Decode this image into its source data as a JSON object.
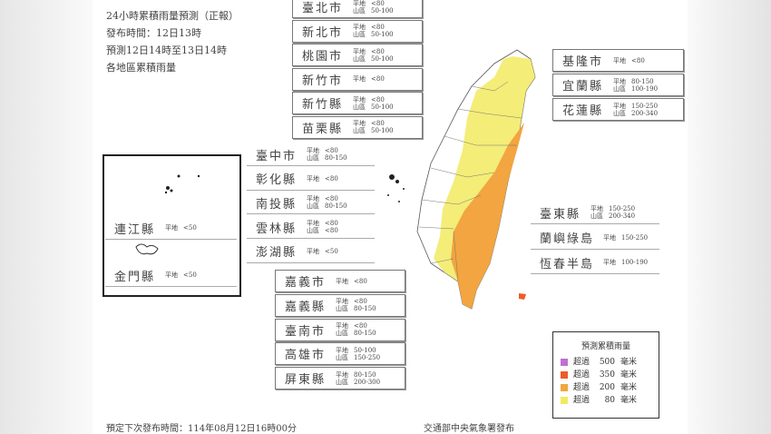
{
  "title_lines": [
    "24小時累積雨量預測（正報）",
    "發布時間：12日13時",
    "預測12日14時至13日14時",
    "各地區累積雨量"
  ],
  "row_labels": {
    "plain": "平地",
    "mountain": "山區"
  },
  "regions": [
    {
      "name": "臺北市",
      "group": "top",
      "rows": [
        [
          "plain",
          "<80"
        ],
        [
          "mountain",
          "50-100"
        ]
      ]
    },
    {
      "name": "新北市",
      "group": "top",
      "rows": [
        [
          "plain",
          "<80"
        ],
        [
          "mountain",
          "50-100"
        ]
      ]
    },
    {
      "name": "桃園市",
      "group": "top",
      "rows": [
        [
          "plain",
          "<80"
        ],
        [
          "mountain",
          "50-100"
        ]
      ]
    },
    {
      "name": "新竹市",
      "group": "top",
      "rows": [
        [
          "plain",
          "<80"
        ]
      ]
    },
    {
      "name": "新竹縣",
      "group": "top",
      "rows": [
        [
          "plain",
          "<80"
        ],
        [
          "mountain",
          "50-100"
        ]
      ]
    },
    {
      "name": "苗栗縣",
      "group": "top",
      "rows": [
        [
          "plain",
          "<80"
        ],
        [
          "mountain",
          "50-100"
        ]
      ]
    },
    {
      "name": "臺中市",
      "group": "mid",
      "rows": [
        [
          "plain",
          "<80"
        ],
        [
          "mountain",
          "80-150"
        ]
      ]
    },
    {
      "name": "彰化縣",
      "group": "mid",
      "rows": [
        [
          "plain",
          "<80"
        ]
      ]
    },
    {
      "name": "南投縣",
      "group": "mid",
      "rows": [
        [
          "plain",
          "<80"
        ],
        [
          "mountain",
          "80-150"
        ]
      ]
    },
    {
      "name": "雲林縣",
      "group": "mid",
      "rows": [
        [
          "plain",
          "<80"
        ],
        [
          "mountain",
          "<80"
        ]
      ]
    },
    {
      "name": "澎湖縣",
      "group": "mid",
      "rows": [
        [
          "plain",
          "<50"
        ]
      ]
    },
    {
      "name": "嘉義市",
      "group": "south",
      "rows": [
        [
          "plain",
          "<80"
        ]
      ]
    },
    {
      "name": "嘉義縣",
      "group": "south",
      "rows": [
        [
          "plain",
          "<80"
        ],
        [
          "mountain",
          "80-150"
        ]
      ]
    },
    {
      "name": "臺南市",
      "group": "south",
      "rows": [
        [
          "plain",
          "<80"
        ],
        [
          "mountain",
          "80-150"
        ]
      ]
    },
    {
      "name": "高雄市",
      "group": "south",
      "rows": [
        [
          "plain",
          "50-100"
        ],
        [
          "mountain",
          "150-250"
        ]
      ]
    },
    {
      "name": "屏東縣",
      "group": "south",
      "rows": [
        [
          "plain",
          "80-150"
        ],
        [
          "mountain",
          "200-300"
        ]
      ]
    },
    {
      "name": "基隆市",
      "group": "ne",
      "rows": [
        [
          "plain",
          "<80"
        ]
      ]
    },
    {
      "name": "宜蘭縣",
      "group": "ne",
      "rows": [
        [
          "plain",
          "80-150"
        ],
        [
          "mountain",
          "100-190"
        ]
      ]
    },
    {
      "name": "花蓮縣",
      "group": "ne",
      "rows": [
        [
          "plain",
          "150-250"
        ],
        [
          "mountain",
          "200-340"
        ]
      ]
    },
    {
      "name": "臺東縣",
      "group": "east",
      "rows": [
        [
          "plain",
          "150-250"
        ],
        [
          "mountain",
          "200-340"
        ]
      ]
    },
    {
      "name": "蘭嶼綠島",
      "group": "east",
      "rows": [
        [
          "plain",
          "150-250"
        ]
      ]
    },
    {
      "name": "恆春半島",
      "group": "east",
      "rows": [
        [
          "plain",
          "100-190"
        ]
      ]
    },
    {
      "name": "連江縣",
      "group": "isl",
      "rows": [
        [
          "plain",
          "<50"
        ]
      ]
    },
    {
      "name": "金門縣",
      "group": "isl",
      "rows": [
        [
          "plain",
          "<50"
        ]
      ]
    }
  ],
  "legend": {
    "title": "預測累積雨量",
    "items": [
      {
        "label": "超過",
        "value": "500",
        "unit": "毫米",
        "color": "#c070d0"
      },
      {
        "label": "超過",
        "value": "350",
        "unit": "毫米",
        "color": "#f05a28"
      },
      {
        "label": "超過",
        "value": "200",
        "unit": "毫米",
        "color": "#f2a540"
      },
      {
        "label": "超過",
        "value": "80",
        "unit": "毫米",
        "color": "#f2ea60"
      }
    ]
  },
  "footer": {
    "next_release": "預定下次發布時間：114年08月12日16時00分",
    "publisher": "交通部中央氣象署發布"
  }
}
